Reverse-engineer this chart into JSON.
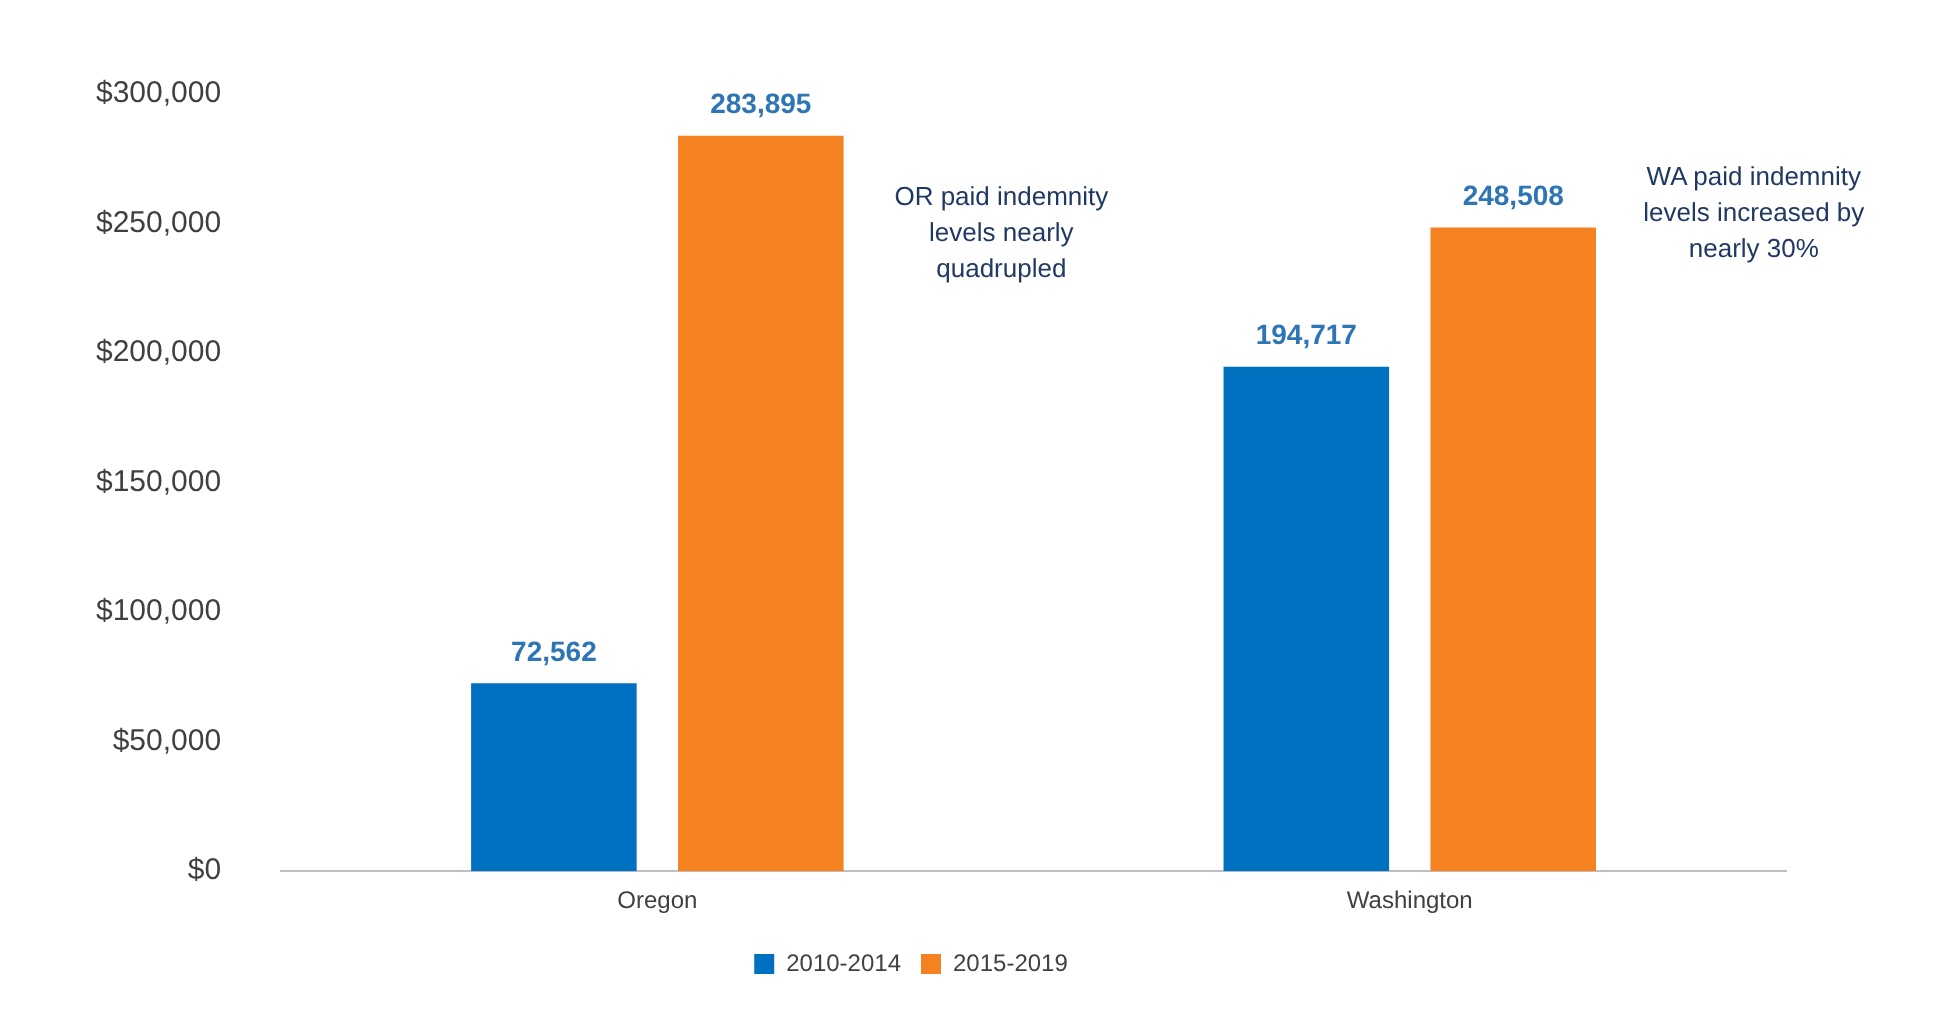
{
  "chart_data": {
    "type": "bar",
    "categories": [
      "Oregon",
      "Washington"
    ],
    "series": [
      {
        "name": "2010-2014",
        "color": "#0070c0",
        "values": [
          72562,
          194717
        ],
        "value_labels": [
          "72,562",
          "194,717"
        ]
      },
      {
        "name": "2015-2019",
        "color": "#f58220",
        "values": [
          283895,
          248508
        ],
        "value_labels": [
          "283,895",
          "248,508"
        ]
      }
    ],
    "ylim": [
      0,
      300000
    ],
    "yticks": [
      {
        "value": 0,
        "label": "$0"
      },
      {
        "value": 50000,
        "label": "$50,000"
      },
      {
        "value": 100000,
        "label": "$100,000"
      },
      {
        "value": 150000,
        "label": "$150,000"
      },
      {
        "value": 200000,
        "label": "$200,000"
      },
      {
        "value": 250000,
        "label": "$250,000"
      },
      {
        "value": 300000,
        "label": "$300,000"
      }
    ],
    "grid": false,
    "legend": "bottom",
    "annotations": [
      "OR paid indemnity levels nearly quadrupled",
      "WA paid indemnity levels increased by nearly 30%"
    ]
  }
}
